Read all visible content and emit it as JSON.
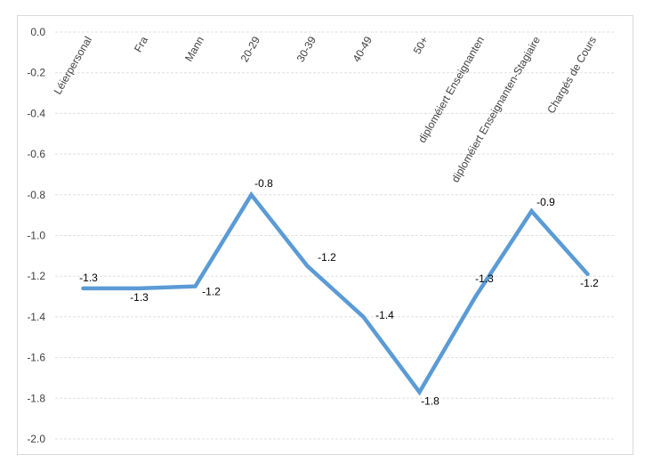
{
  "chart_data": {
    "type": "line",
    "categories": [
      "Léierpersonal",
      "Fra",
      "Mann",
      "20-29",
      "30-39",
      "40-49",
      "50+",
      "diploméiert Enseignanten",
      "diploméiert Enseignanten-Stagiaire",
      "Chargés de Cours"
    ],
    "series": [
      {
        "values": [
          -1.26,
          -1.26,
          -1.25,
          -0.8,
          -1.15,
          -1.4,
          -1.77,
          -1.3,
          -0.88,
          -1.19
        ],
        "labels": [
          "-1.3",
          "-1.3",
          "-1.2",
          "-0.8",
          "-1.2",
          "-1.4",
          "-1.8",
          "-1.3",
          "-0.9",
          "-1.2"
        ],
        "color": "#5b9bd5"
      }
    ],
    "ylim": [
      -2.0,
      0.0
    ],
    "yticks": [
      "0.0",
      "-0.2",
      "-0.4",
      "-0.6",
      "-0.8",
      "-1.0",
      "-1.2",
      "-1.4",
      "-1.6",
      "-1.8",
      "-2.0"
    ],
    "grid": true,
    "legend": "none"
  }
}
